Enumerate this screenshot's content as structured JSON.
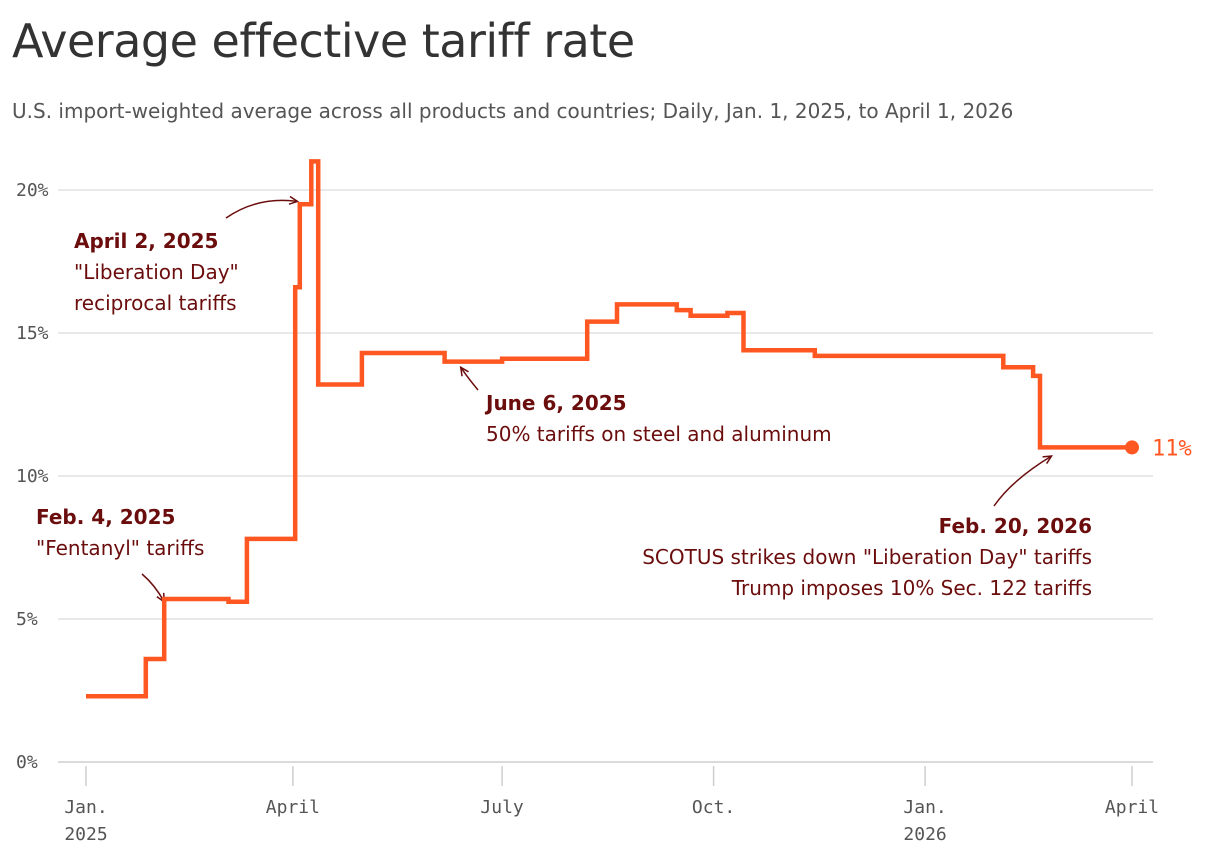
{
  "chart_data": {
    "type": "line",
    "title": "Average effective tariff rate",
    "subtitle": "U.S. import-weighted average across all products and countries; Daily, Jan. 1, 2025, to April 1, 2026",
    "xlabel": "",
    "ylabel": "",
    "x_range": [
      "2025-01-01",
      "2026-04-01"
    ],
    "ylim": [
      0,
      21
    ],
    "y_ticks": [
      {
        "value": 0,
        "label": "0%"
      },
      {
        "value": 5,
        "label": "5%"
      },
      {
        "value": 10,
        "label": "10%"
      },
      {
        "value": 15,
        "label": "15%"
      },
      {
        "value": 20,
        "label": "20%"
      }
    ],
    "x_ticks": [
      {
        "date": "2025-01-01",
        "label": "Jan.",
        "label2": "2025"
      },
      {
        "date": "2025-04-01",
        "label": "April",
        "label2": ""
      },
      {
        "date": "2025-07-01",
        "label": "July",
        "label2": ""
      },
      {
        "date": "2025-10-01",
        "label": "Oct.",
        "label2": ""
      },
      {
        "date": "2026-01-01",
        "label": "Jan.",
        "label2": "2026"
      },
      {
        "date": "2026-04-01",
        "label": "April",
        "label2": ""
      }
    ],
    "grid": true,
    "color": "#ff5722",
    "end_label": "11%",
    "series": [
      {
        "step": true,
        "points": [
          [
            "2025-01-01",
            2.3
          ],
          [
            "2025-01-27",
            3.6
          ],
          [
            "2025-02-04",
            5.7
          ],
          [
            "2025-03-04",
            5.6
          ],
          [
            "2025-03-12",
            7.8
          ],
          [
            "2025-04-02",
            16.6
          ],
          [
            "2025-04-04",
            19.5
          ],
          [
            "2025-04-09",
            21.0
          ],
          [
            "2025-04-12",
            13.2
          ],
          [
            "2025-05-01",
            14.3
          ],
          [
            "2025-05-12",
            14.3
          ],
          [
            "2025-06-06",
            14.0
          ],
          [
            "2025-07-01",
            14.1
          ],
          [
            "2025-08-07",
            15.4
          ],
          [
            "2025-08-20",
            16.0
          ],
          [
            "2025-09-15",
            15.8
          ],
          [
            "2025-09-21",
            15.6
          ],
          [
            "2025-09-28",
            15.6
          ],
          [
            "2025-10-07",
            15.7
          ],
          [
            "2025-10-14",
            14.4
          ],
          [
            "2025-11-14",
            14.2
          ],
          [
            "2026-02-04",
            13.8
          ],
          [
            "2026-02-17",
            13.5
          ],
          [
            "2026-02-20",
            11.0
          ],
          [
            "2026-04-01",
            11.0
          ]
        ]
      }
    ],
    "annotations": [
      {
        "date_title": "April 2, 2025",
        "lines": [
          "\"Liberation Day\"",
          "reciprocal tariffs"
        ],
        "point": [
          "2025-04-03",
          19.6
        ]
      },
      {
        "date_title": "June 6, 2025",
        "lines": [
          "50% tariffs on steel and aluminum"
        ],
        "point": [
          "2025-06-13",
          13.8
        ]
      },
      {
        "date_title": "Feb. 4, 2025",
        "lines": [
          "\"Fentanyl\" tariffs"
        ],
        "point": [
          "2025-02-04",
          5.6
        ]
      },
      {
        "date_title": "Feb. 20, 2026",
        "lines": [
          "SCOTUS strikes down \"Liberation Day\" tariffs",
          "Trump imposes 10% Sec. 122 tariffs"
        ],
        "point": [
          "2026-02-25",
          10.7
        ]
      }
    ]
  }
}
